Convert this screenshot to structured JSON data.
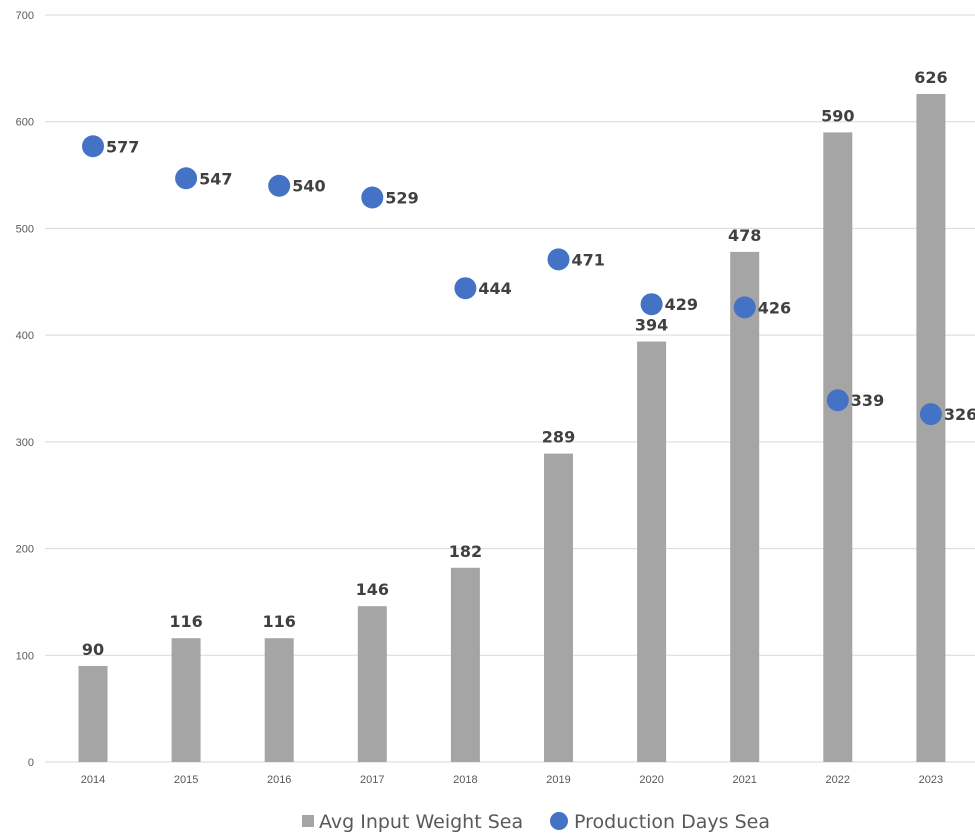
{
  "chart_data": {
    "type": "bar",
    "categories": [
      "2014",
      "2015",
      "2016",
      "2017",
      "2018",
      "2019",
      "2020",
      "2021",
      "2022",
      "2023"
    ],
    "series": [
      {
        "name": "Avg Input Weight Sea",
        "type": "bar",
        "color": "#a5a5a5",
        "values": [
          90,
          116,
          116,
          146,
          182,
          289,
          394,
          478,
          590,
          626
        ]
      },
      {
        "name": "Production Days Sea",
        "type": "scatter",
        "color": "#4472c4",
        "values": [
          577,
          547,
          540,
          529,
          444,
          471,
          429,
          426,
          339,
          326
        ]
      }
    ],
    "yticks": [
      "0",
      "100",
      "200",
      "300",
      "400",
      "500",
      "600",
      "700"
    ],
    "ylim": [
      0,
      700
    ],
    "grid": true,
    "legend_position": "bottom",
    "bar_labels": [
      "90",
      "116",
      "116",
      "146",
      "182",
      "289",
      "394",
      "478",
      "590",
      "626"
    ],
    "point_labels": [
      "577",
      "547",
      "540",
      "529",
      "444",
      "471",
      "429",
      "426",
      "339",
      "326"
    ]
  }
}
